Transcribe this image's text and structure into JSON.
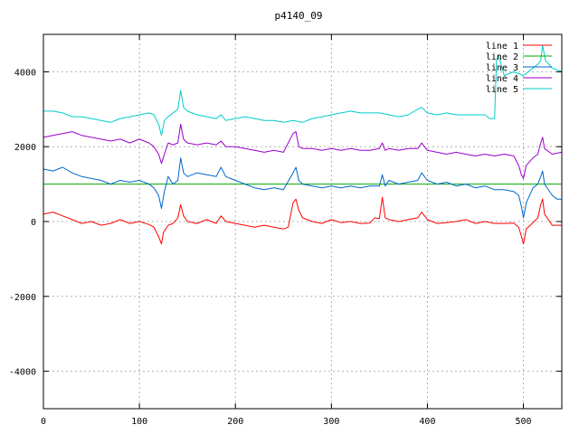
{
  "chart_data": {
    "type": "line",
    "title": "p4140_09",
    "xlabel": "",
    "ylabel": "",
    "xlim": [
      0,
      540
    ],
    "ylim": [
      -5000,
      5000
    ],
    "xticks": [
      0,
      100,
      200,
      300,
      400,
      500
    ],
    "yticks": [
      -4000,
      -2000,
      0,
      2000,
      4000
    ],
    "grid": true,
    "legend_position": "top-right",
    "series": [
      {
        "name": "line 1",
        "color": "#ff0000",
        "points": [
          [
            0,
            200
          ],
          [
            10,
            250
          ],
          [
            20,
            150
          ],
          [
            30,
            50
          ],
          [
            40,
            -50
          ],
          [
            50,
            0
          ],
          [
            60,
            -100
          ],
          [
            70,
            -50
          ],
          [
            80,
            50
          ],
          [
            90,
            -50
          ],
          [
            100,
            0
          ],
          [
            110,
            -80
          ],
          [
            115,
            -150
          ],
          [
            120,
            -400
          ],
          [
            123,
            -600
          ],
          [
            125,
            -300
          ],
          [
            130,
            -100
          ],
          [
            135,
            -50
          ],
          [
            140,
            100
          ],
          [
            143,
            450
          ],
          [
            146,
            150
          ],
          [
            150,
            0
          ],
          [
            160,
            -50
          ],
          [
            170,
            50
          ],
          [
            180,
            -50
          ],
          [
            185,
            150
          ],
          [
            190,
            0
          ],
          [
            200,
            -50
          ],
          [
            210,
            -100
          ],
          [
            220,
            -150
          ],
          [
            230,
            -100
          ],
          [
            240,
            -150
          ],
          [
            250,
            -200
          ],
          [
            255,
            -150
          ],
          [
            260,
            500
          ],
          [
            263,
            600
          ],
          [
            266,
            300
          ],
          [
            270,
            100
          ],
          [
            280,
            0
          ],
          [
            290,
            -50
          ],
          [
            300,
            50
          ],
          [
            310,
            -30
          ],
          [
            320,
            0
          ],
          [
            330,
            -50
          ],
          [
            340,
            -40
          ],
          [
            345,
            100
          ],
          [
            350,
            80
          ],
          [
            353,
            650
          ],
          [
            356,
            100
          ],
          [
            360,
            50
          ],
          [
            370,
            0
          ],
          [
            380,
            50
          ],
          [
            390,
            100
          ],
          [
            394,
            250
          ],
          [
            400,
            50
          ],
          [
            410,
            -50
          ],
          [
            420,
            -30
          ],
          [
            430,
            0
          ],
          [
            440,
            50
          ],
          [
            450,
            -50
          ],
          [
            460,
            0
          ],
          [
            470,
            -50
          ],
          [
            480,
            -50
          ],
          [
            490,
            -40
          ],
          [
            495,
            -150
          ],
          [
            498,
            -400
          ],
          [
            500,
            -600
          ],
          [
            503,
            -200
          ],
          [
            510,
            -30
          ],
          [
            515,
            100
          ],
          [
            518,
            450
          ],
          [
            520,
            600
          ],
          [
            522,
            200
          ],
          [
            530,
            -100
          ],
          [
            540,
            -100
          ]
        ]
      },
      {
        "name": "line 2",
        "color": "#00aa00",
        "points": [
          [
            0,
            1000
          ],
          [
            540,
            1000
          ]
        ]
      },
      {
        "name": "line 3",
        "color": "#0066cc",
        "points": [
          [
            0,
            1400
          ],
          [
            10,
            1350
          ],
          [
            20,
            1450
          ],
          [
            30,
            1300
          ],
          [
            40,
            1200
          ],
          [
            50,
            1150
          ],
          [
            60,
            1100
          ],
          [
            70,
            1000
          ],
          [
            80,
            1100
          ],
          [
            90,
            1050
          ],
          [
            100,
            1100
          ],
          [
            110,
            1000
          ],
          [
            115,
            900
          ],
          [
            120,
            700
          ],
          [
            123,
            350
          ],
          [
            126,
            800
          ],
          [
            130,
            1200
          ],
          [
            135,
            1000
          ],
          [
            140,
            1100
          ],
          [
            143,
            1700
          ],
          [
            146,
            1300
          ],
          [
            150,
            1200
          ],
          [
            160,
            1300
          ],
          [
            170,
            1250
          ],
          [
            180,
            1200
          ],
          [
            185,
            1450
          ],
          [
            190,
            1200
          ],
          [
            200,
            1100
          ],
          [
            210,
            1000
          ],
          [
            220,
            900
          ],
          [
            230,
            850
          ],
          [
            240,
            900
          ],
          [
            250,
            850
          ],
          [
            260,
            1300
          ],
          [
            263,
            1450
          ],
          [
            266,
            1100
          ],
          [
            270,
            1000
          ],
          [
            280,
            950
          ],
          [
            290,
            900
          ],
          [
            300,
            950
          ],
          [
            310,
            900
          ],
          [
            320,
            950
          ],
          [
            330,
            900
          ],
          [
            340,
            950
          ],
          [
            350,
            950
          ],
          [
            353,
            1250
          ],
          [
            356,
            950
          ],
          [
            360,
            1100
          ],
          [
            370,
            1000
          ],
          [
            380,
            1050
          ],
          [
            390,
            1100
          ],
          [
            394,
            1300
          ],
          [
            400,
            1100
          ],
          [
            410,
            1000
          ],
          [
            420,
            1050
          ],
          [
            430,
            950
          ],
          [
            440,
            1000
          ],
          [
            450,
            900
          ],
          [
            460,
            950
          ],
          [
            470,
            850
          ],
          [
            480,
            850
          ],
          [
            490,
            800
          ],
          [
            495,
            700
          ],
          [
            498,
            400
          ],
          [
            500,
            100
          ],
          [
            503,
            500
          ],
          [
            510,
            900
          ],
          [
            515,
            1000
          ],
          [
            518,
            1200
          ],
          [
            520,
            1350
          ],
          [
            522,
            1000
          ],
          [
            530,
            700
          ],
          [
            535,
            600
          ],
          [
            540,
            600
          ]
        ]
      },
      {
        "name": "line 4",
        "color": "#9900cc",
        "points": [
          [
            0,
            2250
          ],
          [
            10,
            2300
          ],
          [
            20,
            2350
          ],
          [
            30,
            2400
          ],
          [
            40,
            2300
          ],
          [
            50,
            2250
          ],
          [
            60,
            2200
          ],
          [
            70,
            2150
          ],
          [
            80,
            2200
          ],
          [
            90,
            2100
          ],
          [
            100,
            2200
          ],
          [
            110,
            2100
          ],
          [
            115,
            2000
          ],
          [
            120,
            1800
          ],
          [
            123,
            1550
          ],
          [
            126,
            1800
          ],
          [
            130,
            2100
          ],
          [
            135,
            2050
          ],
          [
            140,
            2100
          ],
          [
            143,
            2600
          ],
          [
            146,
            2200
          ],
          [
            150,
            2100
          ],
          [
            160,
            2050
          ],
          [
            170,
            2100
          ],
          [
            180,
            2050
          ],
          [
            185,
            2150
          ],
          [
            190,
            2000
          ],
          [
            200,
            2000
          ],
          [
            210,
            1950
          ],
          [
            220,
            1900
          ],
          [
            230,
            1850
          ],
          [
            240,
            1900
          ],
          [
            250,
            1850
          ],
          [
            260,
            2350
          ],
          [
            263,
            2400
          ],
          [
            266,
            2000
          ],
          [
            270,
            1950
          ],
          [
            280,
            1950
          ],
          [
            290,
            1900
          ],
          [
            300,
            1950
          ],
          [
            310,
            1900
          ],
          [
            320,
            1950
          ],
          [
            330,
            1900
          ],
          [
            340,
            1900
          ],
          [
            350,
            1950
          ],
          [
            353,
            2100
          ],
          [
            356,
            1900
          ],
          [
            360,
            1950
          ],
          [
            370,
            1900
          ],
          [
            380,
            1950
          ],
          [
            390,
            1950
          ],
          [
            394,
            2100
          ],
          [
            400,
            1900
          ],
          [
            410,
            1850
          ],
          [
            420,
            1800
          ],
          [
            430,
            1850
          ],
          [
            440,
            1800
          ],
          [
            450,
            1750
          ],
          [
            460,
            1800
          ],
          [
            470,
            1750
          ],
          [
            480,
            1800
          ],
          [
            490,
            1750
          ],
          [
            495,
            1500
          ],
          [
            498,
            1250
          ],
          [
            500,
            1150
          ],
          [
            503,
            1500
          ],
          [
            510,
            1700
          ],
          [
            515,
            1800
          ],
          [
            518,
            2100
          ],
          [
            520,
            2250
          ],
          [
            522,
            1950
          ],
          [
            530,
            1800
          ],
          [
            540,
            1850
          ]
        ]
      },
      {
        "name": "line 5",
        "color": "#00cccc",
        "points": [
          [
            0,
            2950
          ],
          [
            10,
            2950
          ],
          [
            20,
            2900
          ],
          [
            30,
            2800
          ],
          [
            40,
            2800
          ],
          [
            50,
            2750
          ],
          [
            60,
            2700
          ],
          [
            70,
            2650
          ],
          [
            80,
            2750
          ],
          [
            90,
            2800
          ],
          [
            100,
            2850
          ],
          [
            110,
            2900
          ],
          [
            115,
            2850
          ],
          [
            120,
            2600
          ],
          [
            123,
            2300
          ],
          [
            126,
            2700
          ],
          [
            130,
            2800
          ],
          [
            135,
            2900
          ],
          [
            140,
            3000
          ],
          [
            143,
            3500
          ],
          [
            146,
            3050
          ],
          [
            150,
            2950
          ],
          [
            160,
            2850
          ],
          [
            170,
            2800
          ],
          [
            180,
            2750
          ],
          [
            185,
            2850
          ],
          [
            190,
            2700
          ],
          [
            200,
            2750
          ],
          [
            210,
            2800
          ],
          [
            220,
            2750
          ],
          [
            230,
            2700
          ],
          [
            240,
            2700
          ],
          [
            250,
            2650
          ],
          [
            260,
            2700
          ],
          [
            270,
            2650
          ],
          [
            280,
            2750
          ],
          [
            290,
            2800
          ],
          [
            300,
            2850
          ],
          [
            310,
            2900
          ],
          [
            320,
            2950
          ],
          [
            330,
            2900
          ],
          [
            340,
            2900
          ],
          [
            350,
            2900
          ],
          [
            360,
            2850
          ],
          [
            370,
            2800
          ],
          [
            380,
            2850
          ],
          [
            390,
            3000
          ],
          [
            394,
            3050
          ],
          [
            400,
            2900
          ],
          [
            410,
            2850
          ],
          [
            420,
            2900
          ],
          [
            430,
            2850
          ],
          [
            440,
            2850
          ],
          [
            450,
            2850
          ],
          [
            460,
            2850
          ],
          [
            465,
            2750
          ],
          [
            470,
            2750
          ],
          [
            472,
            4300
          ],
          [
            474,
            4450
          ],
          [
            480,
            3900
          ],
          [
            490,
            4000
          ],
          [
            500,
            3900
          ],
          [
            510,
            4100
          ],
          [
            515,
            4200
          ],
          [
            518,
            4300
          ],
          [
            520,
            4700
          ],
          [
            523,
            4300
          ],
          [
            530,
            4100
          ],
          [
            540,
            4000
          ]
        ]
      }
    ]
  }
}
